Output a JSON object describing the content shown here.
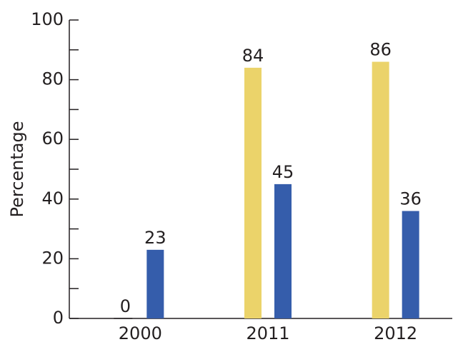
{
  "chart_data": {
    "type": "bar",
    "y_label": "Percentage",
    "categories": [
      "2000",
      "2011",
      "2012"
    ],
    "series": [
      {
        "color": "#ebd36a",
        "values": [
          0,
          84,
          86
        ]
      },
      {
        "color": "#355dab",
        "values": [
          23,
          45,
          36
        ]
      }
    ],
    "ylim": [
      0,
      100
    ],
    "yticks": [
      0,
      20,
      40,
      60,
      80,
      100
    ],
    "yminorticks": [
      10,
      30,
      50,
      70,
      90
    ],
    "grid": false
  }
}
